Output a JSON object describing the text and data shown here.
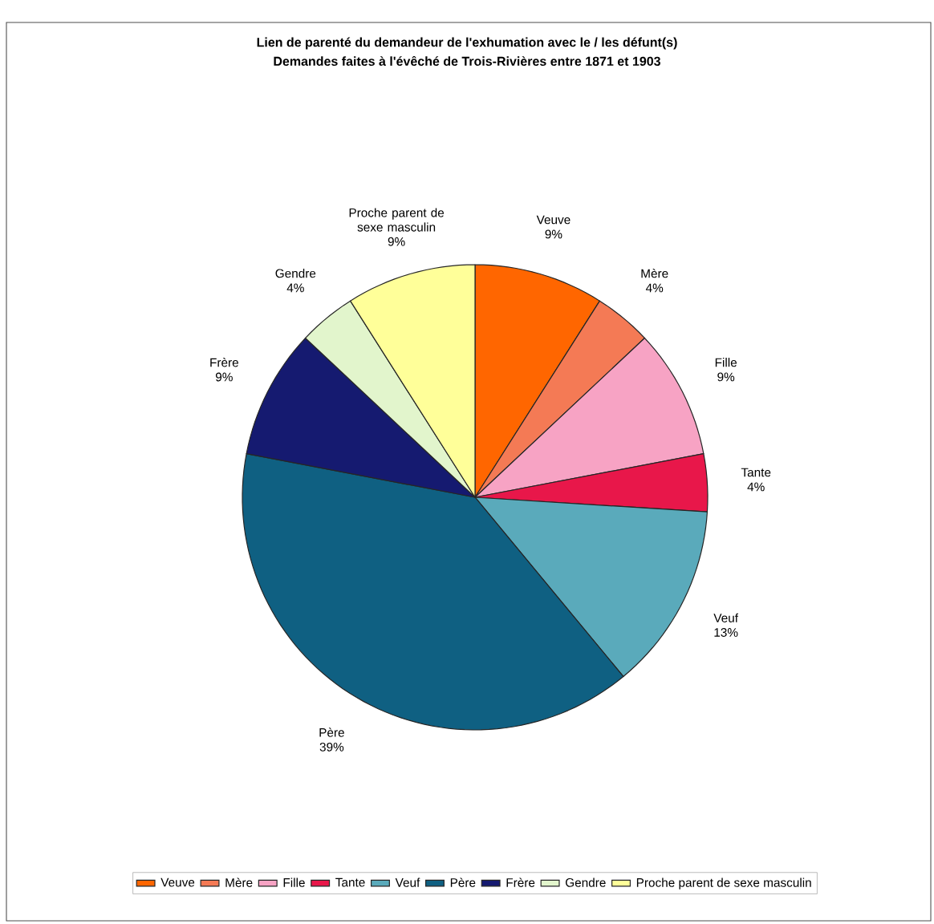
{
  "chart_data": {
    "type": "pie",
    "title": "Lien de parenté du demandeur de l'exhumation avec le / les défunt(s)",
    "subtitle": "Demandes faites à l'évêché de Trois-Rivières entre 1871 et 1903",
    "categories": [
      "Veuve",
      "Mère",
      "Fille",
      "Tante",
      "Veuf",
      "Père",
      "Frère",
      "Gendre",
      "Proche parent de sexe masculin"
    ],
    "values": [
      9,
      4,
      9,
      4,
      13,
      39,
      9,
      4,
      9
    ],
    "value_labels": [
      "9%",
      "4%",
      "9%",
      "4%",
      "13%",
      "39%",
      "9%",
      "4%",
      "9%"
    ],
    "colors": [
      "#ff6600",
      "#f47a55",
      "#f7a3c4",
      "#e8174a",
      "#5aaabb",
      "#0f6082",
      "#151a70",
      "#e2f5cc",
      "#ffff99"
    ],
    "legend": "bottom"
  }
}
